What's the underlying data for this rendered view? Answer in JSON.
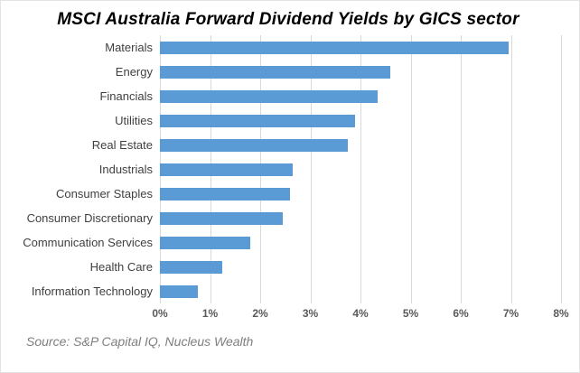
{
  "title": "MSCI Australia Forward Dividend Yields by GICS sector",
  "source": "Source: S&P Capital IQ, Nucleus Wealth",
  "colors": {
    "bar": "#5b9bd5",
    "gridline": "#d9d9d9",
    "label_text": "#404040",
    "tick_text": "#595959",
    "source_text": "#7f7f7f"
  },
  "chart_data": {
    "type": "bar",
    "orientation": "horizontal",
    "title": "MSCI Australia Forward Dividend Yields by GICS sector",
    "categories": [
      "Materials",
      "Energy",
      "Financials",
      "Utilities",
      "Real Estate",
      "Industrials",
      "Consumer Staples",
      "Consumer Discretionary",
      "Communication Services",
      "Health Care",
      "Information Technology"
    ],
    "values": [
      6.95,
      4.6,
      4.35,
      3.9,
      3.75,
      2.65,
      2.6,
      2.45,
      1.8,
      1.25,
      0.75
    ],
    "value_unit": "%",
    "xlim": [
      0,
      8
    ],
    "x_ticks": [
      "0%",
      "1%",
      "2%",
      "3%",
      "4%",
      "5%",
      "6%",
      "7%",
      "8%"
    ],
    "grid": true,
    "legend": "none"
  }
}
